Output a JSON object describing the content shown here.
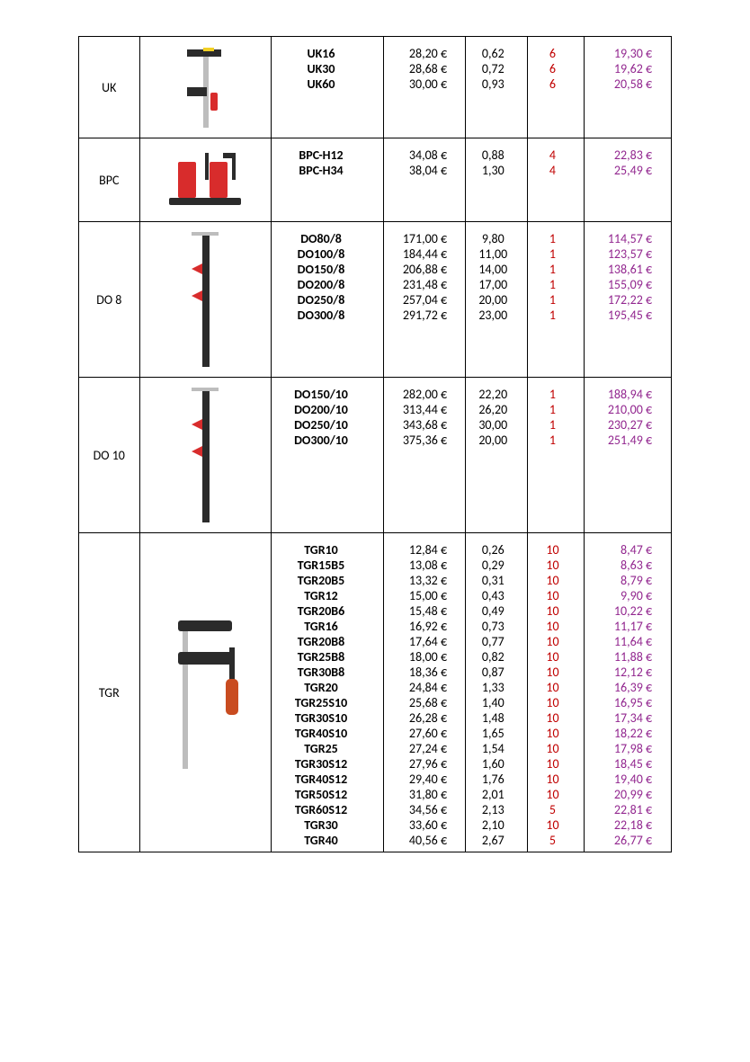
{
  "colors": {
    "text": "#000000",
    "qty": "#c00000",
    "net": "#92278f",
    "border": "#000000",
    "clamp_red": "#d82c2c",
    "clamp_dark": "#2b2b2b",
    "clamp_grey": "#bdbdbd",
    "clamp_handle": "#c94c20"
  },
  "groups": [
    {
      "category": "UK",
      "image": "uk_clamp",
      "rows": [
        {
          "ref": "UK16",
          "price": "28,20 €",
          "wt": "0,62",
          "qty": "6",
          "net": "19,30 €"
        },
        {
          "ref": "UK30",
          "price": "28,68 €",
          "wt": "0,72",
          "qty": "6",
          "net": "19,62 €"
        },
        {
          "ref": "UK60",
          "price": "30,00 €",
          "wt": "0,93",
          "qty": "6",
          "net": "20,58 €"
        }
      ]
    },
    {
      "category": "BPC",
      "image": "bpc_clamp",
      "rows": [
        {
          "ref": "BPC-H12",
          "price": "34,08 €",
          "wt": "0,88",
          "qty": "4",
          "net": "22,83 €"
        },
        {
          "ref": "BPC-H34",
          "price": "38,04 €",
          "wt": "1,30",
          "qty": "4",
          "net": "25,49 €"
        }
      ]
    },
    {
      "category": "DO 8",
      "image": "do_clamp",
      "rows": [
        {
          "ref": "DO80/8",
          "price": "171,00 €",
          "wt": "9,80",
          "qty": "1",
          "net": "114,57 €"
        },
        {
          "ref": "DO100/8",
          "price": "184,44 €",
          "wt": "11,00",
          "qty": "1",
          "net": "123,57 €"
        },
        {
          "ref": "DO150/8",
          "price": "206,88 €",
          "wt": "14,00",
          "qty": "1",
          "net": "138,61 €"
        },
        {
          "ref": "DO200/8",
          "price": "231,48 €",
          "wt": "17,00",
          "qty": "1",
          "net": "155,09 €"
        },
        {
          "ref": "DO250/8",
          "price": "257,04 €",
          "wt": "20,00",
          "qty": "1",
          "net": "172,22 €"
        },
        {
          "ref": "DO300/8",
          "price": "291,72 €",
          "wt": "23,00",
          "qty": "1",
          "net": "195,45 €"
        }
      ]
    },
    {
      "category": "DO 10",
      "image": "do_clamp",
      "rows": [
        {
          "ref": "DO150/10",
          "price": "282,00 €",
          "wt": "22,20",
          "qty": "1",
          "net": "188,94 €"
        },
        {
          "ref": "DO200/10",
          "price": "313,44 €",
          "wt": "26,20",
          "qty": "1",
          "net": "210,00 €"
        },
        {
          "ref": "DO250/10",
          "price": "343,68 €",
          "wt": "30,00",
          "qty": "1",
          "net": "230,27 €"
        },
        {
          "ref": "DO300/10",
          "price": "375,36 €",
          "wt": "20,00",
          "qty": "1",
          "net": "251,49 €"
        }
      ]
    },
    {
      "category": "TGR",
      "image": "tgr_clamp",
      "rows": [
        {
          "ref": "TGR10",
          "price": "12,84 €",
          "wt": "0,26",
          "qty": "10",
          "net": "8,47 €"
        },
        {
          "ref": "TGR15B5",
          "price": "13,08 €",
          "wt": "0,29",
          "qty": "10",
          "net": "8,63 €"
        },
        {
          "ref": "TGR20B5",
          "price": "13,32 €",
          "wt": "0,31",
          "qty": "10",
          "net": "8,79 €"
        },
        {
          "ref": "TGR12",
          "price": "15,00 €",
          "wt": "0,43",
          "qty": "10",
          "net": "9,90 €"
        },
        {
          "ref": "TGR20B6",
          "price": "15,48 €",
          "wt": "0,49",
          "qty": "10",
          "net": "10,22 €"
        },
        {
          "ref": "TGR16",
          "price": "16,92 €",
          "wt": "0,73",
          "qty": "10",
          "net": "11,17 €"
        },
        {
          "ref": "TGR20B8",
          "price": "17,64 €",
          "wt": "0,77",
          "qty": "10",
          "net": "11,64 €"
        },
        {
          "ref": "TGR25B8",
          "price": "18,00 €",
          "wt": "0,82",
          "qty": "10",
          "net": "11,88 €"
        },
        {
          "ref": "TGR30B8",
          "price": "18,36 €",
          "wt": "0,87",
          "qty": "10",
          "net": "12,12 €"
        },
        {
          "ref": "TGR20",
          "price": "24,84 €",
          "wt": "1,33",
          "qty": "10",
          "net": "16,39 €"
        },
        {
          "ref": "TGR25S10",
          "price": "25,68 €",
          "wt": "1,40",
          "qty": "10",
          "net": "16,95 €"
        },
        {
          "ref": "TGR30S10",
          "price": "26,28 €",
          "wt": "1,48",
          "qty": "10",
          "net": "17,34 €"
        },
        {
          "ref": "TGR40S10",
          "price": "27,60 €",
          "wt": "1,65",
          "qty": "10",
          "net": "18,22 €"
        },
        {
          "ref": "TGR25",
          "price": "27,24 €",
          "wt": "1,54",
          "qty": "10",
          "net": "17,98 €"
        },
        {
          "ref": "TGR30S12",
          "price": "27,96 €",
          "wt": "1,60",
          "qty": "10",
          "net": "18,45 €"
        },
        {
          "ref": "TGR40S12",
          "price": "29,40 €",
          "wt": "1,76",
          "qty": "10",
          "net": "19,40 €"
        },
        {
          "ref": "TGR50S12",
          "price": "31,80 €",
          "wt": "2,01",
          "qty": "10",
          "net": "20,99 €"
        },
        {
          "ref": "TGR60S12",
          "price": "34,56 €",
          "wt": "2,13",
          "qty": "5",
          "net": "22,81 €"
        },
        {
          "ref": "TGR30",
          "price": "33,60 €",
          "wt": "2,10",
          "qty": "10",
          "net": "22,18 €"
        },
        {
          "ref": "TGR40",
          "price": "40,56 €",
          "wt": "2,67",
          "qty": "5",
          "net": "26,77 €"
        }
      ]
    }
  ]
}
